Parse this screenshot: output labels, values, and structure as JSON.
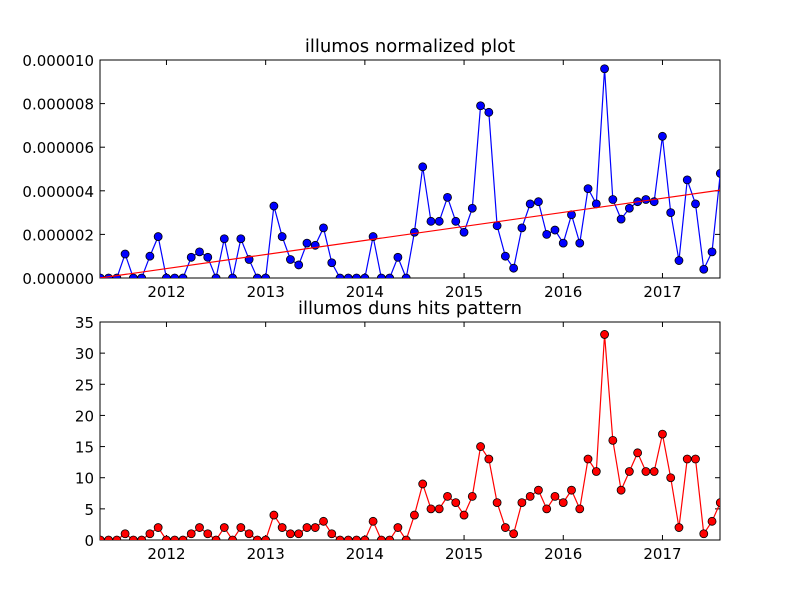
{
  "chart_data": [
    {
      "type": "line",
      "title": "illumos normalized plot",
      "xlabel": "",
      "ylabel": "",
      "xlim": [
        2011.33,
        2017.58
      ],
      "ylim": [
        0,
        1e-05
      ],
      "x_ticks": [
        "2012",
        "2013",
        "2014",
        "2015",
        "2016",
        "2017"
      ],
      "x_tick_values": [
        2012,
        2013,
        2014,
        2015,
        2016,
        2017
      ],
      "y_ticks": [
        "0.000000",
        "0.000002",
        "0.000004",
        "0.000006",
        "0.000008",
        "0.000010"
      ],
      "y_tick_values": [
        0,
        2e-06,
        4e-06,
        6e-06,
        8e-06,
        1e-05
      ],
      "grid": false,
      "x_start": 2011.333,
      "x_step": 0.0833333,
      "series": [
        {
          "color": "#0000ff",
          "marker": "circle",
          "values": [
            0,
            0,
            0,
            1.1e-06,
            0,
            0,
            1e-06,
            1.9e-06,
            0,
            0,
            0,
            9.5e-07,
            1.2e-06,
            9.5e-07,
            0,
            1.8e-06,
            0,
            1.8e-06,
            8.5e-07,
            0,
            0,
            3.3e-06,
            1.9e-06,
            8.5e-07,
            6e-07,
            1.6e-06,
            1.5e-06,
            2.3e-06,
            7e-07,
            0,
            0,
            0,
            0,
            1.9e-06,
            0,
            0,
            9.5e-07,
            0,
            2.1e-06,
            5.1e-06,
            2.6e-06,
            2.6e-06,
            3.7e-06,
            2.6e-06,
            2.1e-06,
            3.2e-06,
            7.9e-06,
            7.6e-06,
            2.4e-06,
            1e-06,
            4.5e-07,
            2.3e-06,
            3.4e-06,
            3.5e-06,
            2e-06,
            2.2e-06,
            1.6e-06,
            2.9e-06,
            1.6e-06,
            4.1e-06,
            3.4e-06,
            9.6e-06,
            3.6e-06,
            2.7e-06,
            3.2e-06,
            3.5e-06,
            3.6e-06,
            3.5e-06,
            6.5e-06,
            3e-06,
            8e-07,
            4.5e-06,
            3.4e-06,
            4e-07,
            1.2e-06,
            4.8e-06
          ]
        },
        {
          "color": "#ff0000",
          "marker": "none",
          "line": "trend",
          "x": [
            2011.33,
            2017.58
          ],
          "values": [
            0,
            4.03e-06
          ]
        }
      ]
    },
    {
      "type": "line",
      "title": "illumos duns hits pattern",
      "xlabel": "",
      "ylabel": "",
      "xlim": [
        2011.33,
        2017.58
      ],
      "ylim": [
        0,
        35
      ],
      "x_ticks": [
        "2012",
        "2013",
        "2014",
        "2015",
        "2016",
        "2017"
      ],
      "x_tick_values": [
        2012,
        2013,
        2014,
        2015,
        2016,
        2017
      ],
      "y_ticks": [
        "0",
        "5",
        "10",
        "15",
        "20",
        "25",
        "30",
        "35"
      ],
      "y_tick_values": [
        0,
        5,
        10,
        15,
        20,
        25,
        30,
        35
      ],
      "grid": false,
      "x_start": 2011.333,
      "x_step": 0.0833333,
      "series": [
        {
          "color": "#ff0000",
          "marker": "circle",
          "values": [
            0,
            0,
            0,
            1,
            0,
            0,
            1,
            2,
            0,
            0,
            0,
            1,
            2,
            1,
            0,
            2,
            0,
            2,
            1,
            0,
            0,
            4,
            2,
            1,
            1,
            2,
            2,
            3,
            1,
            0,
            0,
            0,
            0,
            3,
            0,
            0,
            2,
            0,
            4,
            9,
            5,
            5,
            7,
            6,
            4,
            7,
            15,
            13,
            6,
            2,
            1,
            6,
            7,
            8,
            5,
            7,
            6,
            8,
            5,
            13,
            11,
            33,
            16,
            8,
            11,
            14,
            11,
            11,
            17,
            10,
            2,
            13,
            13,
            1,
            3,
            6
          ]
        }
      ]
    }
  ]
}
